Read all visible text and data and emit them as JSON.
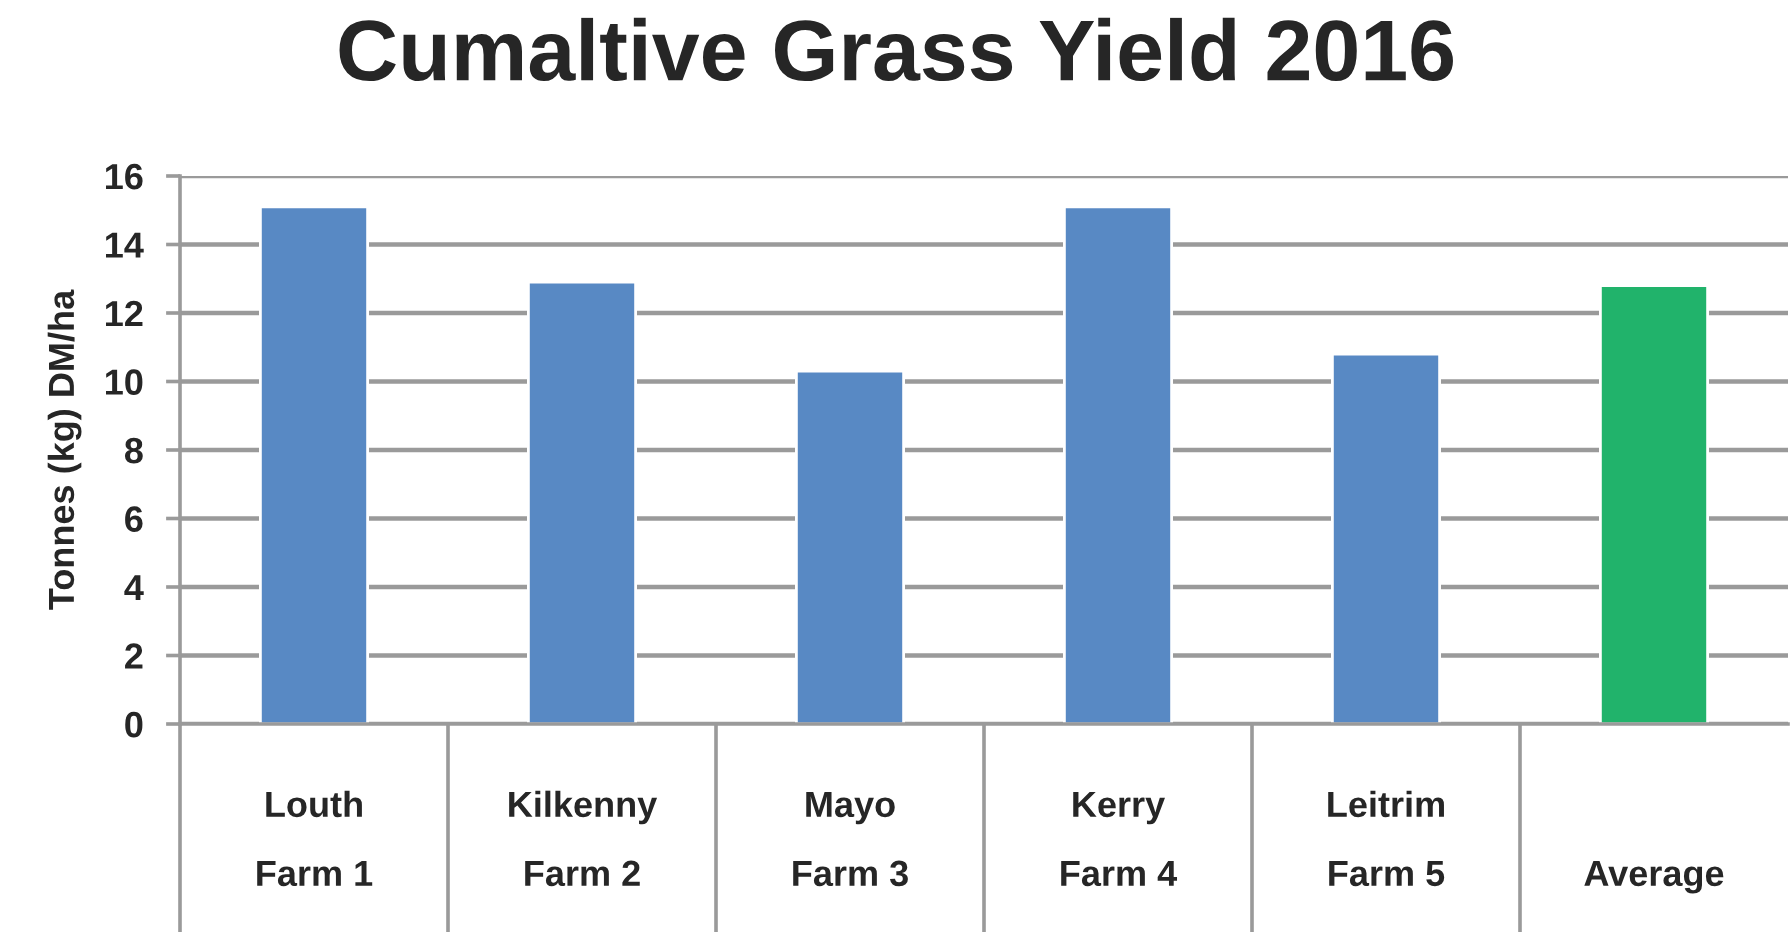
{
  "chart_data": {
    "type": "bar",
    "title": "Cumaltive Grass Yield 2016",
    "ylabel": "Tonnes (kg) DM/ha",
    "categories": [
      "Louth\nFarm 1",
      "Kilkenny\nFarm 2",
      "Mayo\nFarm 3",
      "Kerry\nFarm 4",
      "Leitrim\nFarm 5",
      "Average"
    ],
    "values": [
      15.1,
      12.9,
      10.3,
      15.1,
      10.8,
      12.8
    ],
    "colors": [
      "#5889c4",
      "#5889c4",
      "#5889c4",
      "#5889c4",
      "#5889c4",
      "#21b36b"
    ],
    "ylim": [
      0,
      16
    ],
    "yticks": [
      0,
      2,
      4,
      6,
      8,
      10,
      12,
      14,
      16
    ],
    "grid": "y"
  }
}
